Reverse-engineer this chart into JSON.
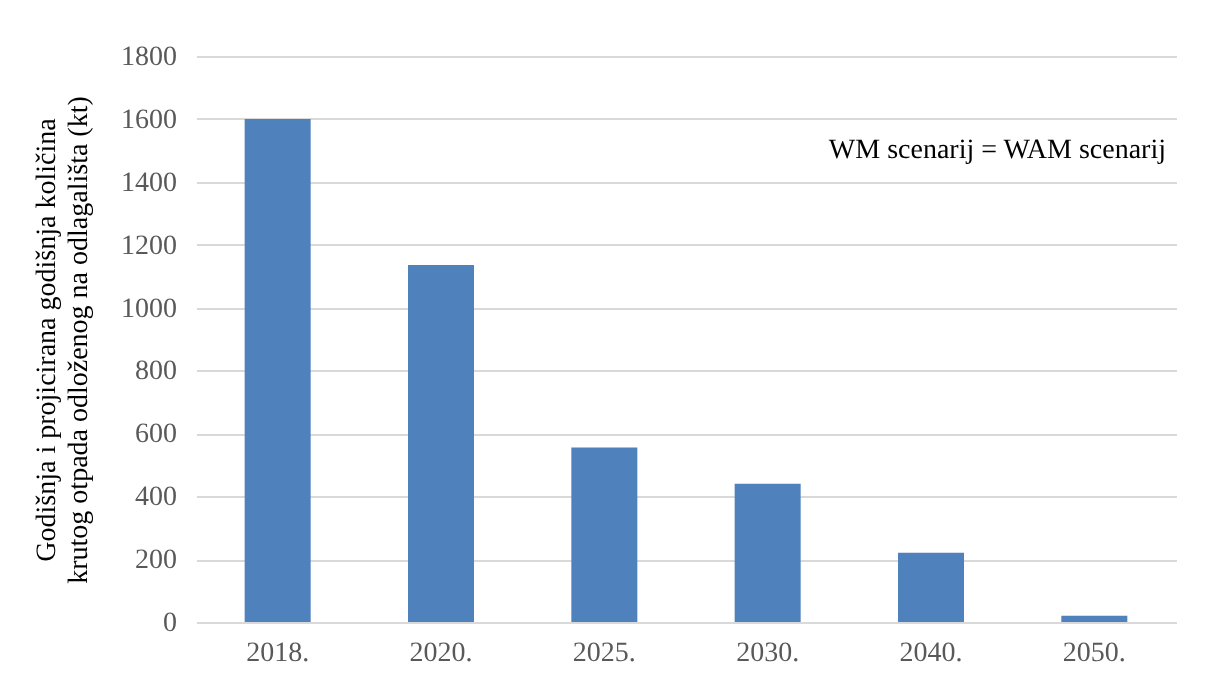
{
  "chart_data": {
    "type": "bar",
    "ylabel": "Godišnja  i projicirana  godišnja  količina\nkrutog otpada odloženog  na odlagališta  (kt)",
    "categories": [
      "2018.",
      "2020.",
      "2025.",
      "2030.",
      "2040.",
      "2050."
    ],
    "values": [
      1600,
      1135,
      555,
      440,
      220,
      20
    ],
    "color": "#4f81bd",
    "ylim": [
      0,
      1800
    ],
    "yticks": [
      0,
      200,
      400,
      600,
      800,
      1000,
      1200,
      1400,
      1600,
      1800
    ],
    "grid": "y",
    "annotations": [
      "WM scenarij = WAM scenarij"
    ]
  }
}
